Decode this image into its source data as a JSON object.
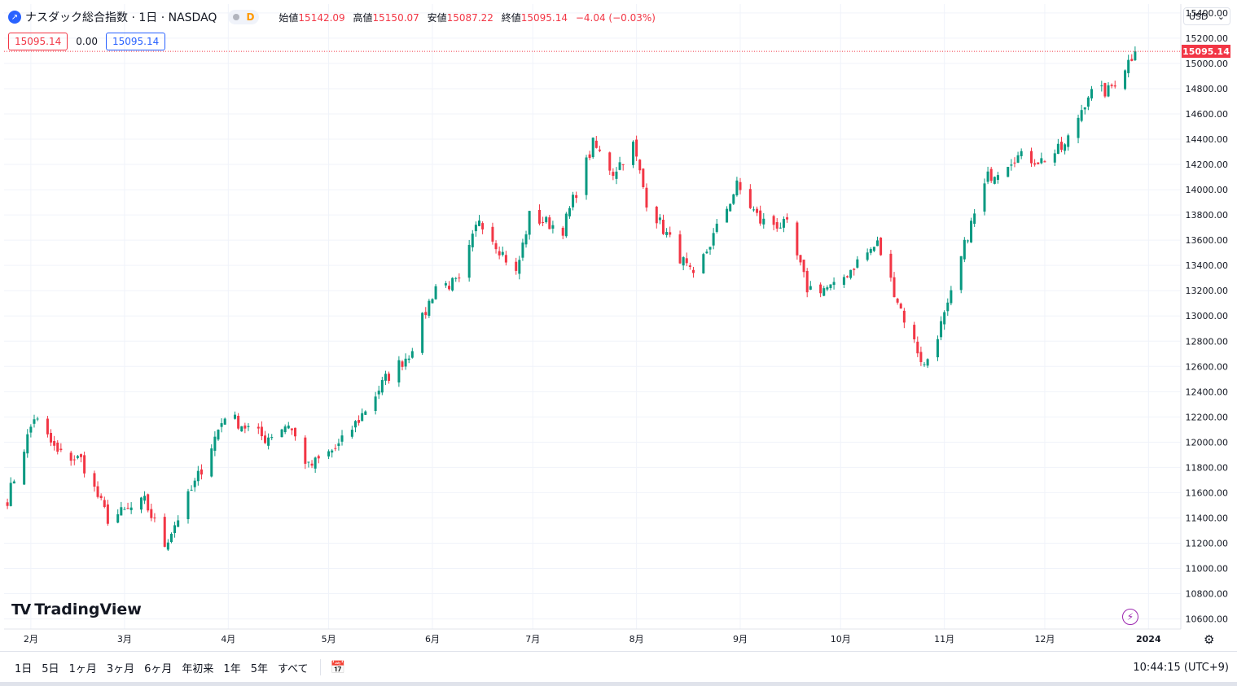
{
  "header": {
    "title": "ナスダック総合指数 · 1日 · NASDAQ",
    "badge": "D",
    "open_label": "始値",
    "open": "15142.09",
    "high_label": "高値",
    "high": "15150.07",
    "low_label": "安値",
    "low": "15087.22",
    "close_label": "終値",
    "close": "15095.14",
    "change": "−4.04 (−0.03%)",
    "bid": "15095.14",
    "spread": "0.00",
    "ask": "15095.14"
  },
  "currency": "USD",
  "last_price": "15095.14",
  "brand": "TradingView",
  "toolbar": {
    "ranges": [
      "1日",
      "5日",
      "1ヶ月",
      "3ヶ月",
      "6ヶ月",
      "年初来",
      "1年",
      "5年",
      "すべて"
    ],
    "clock": "10:44:15 (UTC+9)"
  },
  "colors": {
    "up": "#089981",
    "down": "#f23645",
    "accent": "#2962ff",
    "grid": "#f0f3fa"
  },
  "chart_data": {
    "type": "candlestick",
    "y_tick_labels": [
      "15400.00",
      "15200.00",
      "15000.00",
      "14800.00",
      "14600.00",
      "14400.00",
      "14200.00",
      "14000.00",
      "13800.00",
      "13600.00",
      "13400.00",
      "13200.00",
      "13000.00",
      "12800.00",
      "12600.00",
      "12400.00",
      "12200.00",
      "12000.00",
      "11800.00",
      "11600.00",
      "11400.00",
      "11200.00",
      "11000.00",
      "10800.00",
      "10600.00"
    ],
    "ylim": [
      10520,
      15470
    ],
    "x_tick_labels": [
      "2月",
      "3月",
      "4月",
      "5月",
      "6月",
      "7月",
      "8月",
      "9月",
      "10月",
      "11月",
      "12月",
      "2024"
    ],
    "grid": true,
    "series_anchors": [
      {
        "date": "2023-01-25",
        "close": 11550
      },
      {
        "date": "2023-02-02",
        "close": 12200
      },
      {
        "date": "2023-02-09",
        "close": 11910
      },
      {
        "date": "2023-02-16",
        "close": 11860
      },
      {
        "date": "2023-02-24",
        "close": 11395
      },
      {
        "date": "2023-03-02",
        "close": 11460
      },
      {
        "date": "2023-03-07",
        "close": 11530
      },
      {
        "date": "2023-03-13",
        "close": 11190
      },
      {
        "date": "2023-03-22",
        "close": 11670
      },
      {
        "date": "2023-03-31",
        "close": 12220
      },
      {
        "date": "2023-04-12",
        "close": 12030
      },
      {
        "date": "2023-04-19",
        "close": 12150
      },
      {
        "date": "2023-04-25",
        "close": 11800
      },
      {
        "date": "2023-05-04",
        "close": 11970
      },
      {
        "date": "2023-05-10",
        "close": 12180
      },
      {
        "date": "2023-05-18",
        "close": 12500
      },
      {
        "date": "2023-05-25",
        "close": 12700
      },
      {
        "date": "2023-06-02",
        "close": 13240
      },
      {
        "date": "2023-06-09",
        "close": 13260
      },
      {
        "date": "2023-06-15",
        "close": 13780
      },
      {
        "date": "2023-06-26",
        "close": 13330
      },
      {
        "date": "2023-06-30",
        "close": 13790
      },
      {
        "date": "2023-07-10",
        "close": 13690
      },
      {
        "date": "2023-07-19",
        "close": 14360
      },
      {
        "date": "2023-07-25",
        "close": 14140
      },
      {
        "date": "2023-07-31",
        "close": 14350
      },
      {
        "date": "2023-08-04",
        "close": 13910
      },
      {
        "date": "2023-08-18",
        "close": 13290
      },
      {
        "date": "2023-08-31",
        "close": 14030
      },
      {
        "date": "2023-09-07",
        "close": 13750
      },
      {
        "date": "2023-09-15",
        "close": 13710
      },
      {
        "date": "2023-09-21",
        "close": 13220
      },
      {
        "date": "2023-09-29",
        "close": 13220
      },
      {
        "date": "2023-10-06",
        "close": 13430
      },
      {
        "date": "2023-10-12",
        "close": 13570
      },
      {
        "date": "2023-10-20",
        "close": 12980
      },
      {
        "date": "2023-10-26",
        "close": 12600
      },
      {
        "date": "2023-11-02",
        "close": 13060
      },
      {
        "date": "2023-11-08",
        "close": 13650
      },
      {
        "date": "2023-11-14",
        "close": 14100
      },
      {
        "date": "2023-11-22",
        "close": 14265
      },
      {
        "date": "2023-11-30",
        "close": 14230
      },
      {
        "date": "2023-12-07",
        "close": 14340
      },
      {
        "date": "2023-12-14",
        "close": 14760
      },
      {
        "date": "2023-12-20",
        "close": 14780
      },
      {
        "date": "2023-12-28",
        "close": 15095.14
      }
    ]
  }
}
